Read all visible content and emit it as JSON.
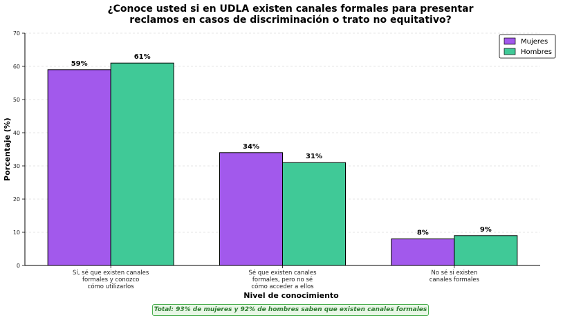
{
  "chart_data": {
    "type": "bar",
    "title": [
      "¿Conoce usted si en UDLA existen canales formales para presentar",
      "reclamos en casos de discriminación o trato no equitativo?"
    ],
    "xlabel": "Nivel de conocimiento",
    "ylabel": "Porcentaje (%)",
    "ylim": [
      0,
      70
    ],
    "yticks": [
      0,
      10,
      20,
      30,
      40,
      50,
      60,
      70
    ],
    "grid": "horizontal dashed",
    "legend_position": "top-right",
    "categories": [
      [
        "Sí, sé que existen canales",
        "formales y conozco",
        "cómo utilizarlos"
      ],
      [
        "Sé que existen canales",
        "formales, pero no sé",
        "cómo acceder a ellos"
      ],
      [
        "No sé si existen",
        "canales formales"
      ]
    ],
    "series": [
      {
        "name": "Mujeres",
        "color": "#a259ec",
        "values": [
          59,
          34,
          8
        ],
        "labels": [
          "59%",
          "34%",
          "8%"
        ]
      },
      {
        "name": "Hombres",
        "color": "#40c997",
        "values": [
          61,
          31,
          9
        ],
        "labels": [
          "61%",
          "31%",
          "9%"
        ]
      }
    ]
  },
  "footnote": "Total: 93% de mujeres y 92% de hombres saben que existen canales formales"
}
